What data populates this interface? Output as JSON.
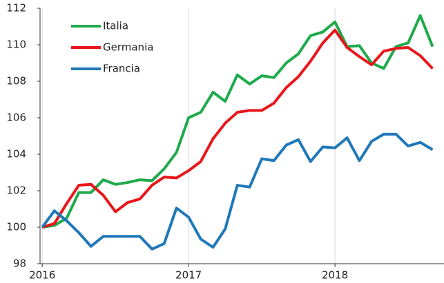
{
  "chart_data": {
    "type": "line",
    "x": [
      2016,
      2016.083,
      2016.167,
      2016.25,
      2016.333,
      2016.417,
      2016.5,
      2016.583,
      2016.667,
      2016.75,
      2016.833,
      2016.917,
      2017,
      2017.083,
      2017.167,
      2017.25,
      2017.333,
      2017.417,
      2017.5,
      2017.583,
      2017.667,
      2017.75,
      2017.833,
      2017.917,
      2018,
      2018.083,
      2018.167,
      2018.25,
      2018.333,
      2018.417,
      2018.5,
      2018.583,
      2018.667
    ],
    "series": [
      {
        "name": "Italia",
        "color": "#1faa4b",
        "values": [
          100,
          100.1,
          100.5,
          101.9,
          101.9,
          102.6,
          102.35,
          102.45,
          102.6,
          102.55,
          103.2,
          104.1,
          106.0,
          106.3,
          107.4,
          106.9,
          108.35,
          107.85,
          108.3,
          108.2,
          109.0,
          109.5,
          110.5,
          110.7,
          111.25,
          109.9,
          109.95,
          109.0,
          108.7,
          109.9,
          110.1,
          111.6,
          109.9
        ]
      },
      {
        "name": "Germania",
        "color": "#e8161b",
        "values": [
          100,
          100.2,
          101.3,
          102.3,
          102.35,
          101.75,
          100.85,
          101.35,
          101.55,
          102.3,
          102.75,
          102.7,
          103.1,
          103.6,
          104.85,
          105.7,
          106.3,
          106.4,
          106.4,
          106.8,
          107.65,
          108.25,
          109.1,
          110.1,
          110.8,
          109.85,
          109.35,
          108.9,
          109.65,
          109.8,
          109.85,
          109.4,
          108.7
        ]
      },
      {
        "name": "Francia",
        "color": "#1f78b9",
        "values": [
          100,
          100.9,
          100.35,
          99.7,
          98.95,
          99.5,
          99.5,
          99.5,
          99.5,
          98.8,
          99.1,
          101.05,
          100.55,
          99.35,
          98.9,
          99.9,
          102.3,
          102.2,
          103.75,
          103.65,
          104.5,
          104.8,
          103.6,
          104.4,
          104.35,
          104.9,
          103.65,
          104.7,
          105.1,
          105.1,
          104.45,
          104.65,
          104.25
        ]
      }
    ],
    "xlim": [
      2015.985,
      2018.745
    ],
    "xticks": [
      2016,
      2017,
      2018
    ],
    "ylim": [
      98,
      112
    ],
    "yticks": [
      98,
      100,
      102,
      104,
      106,
      108,
      110,
      112
    ],
    "grid": "x",
    "legend": "upper left"
  }
}
